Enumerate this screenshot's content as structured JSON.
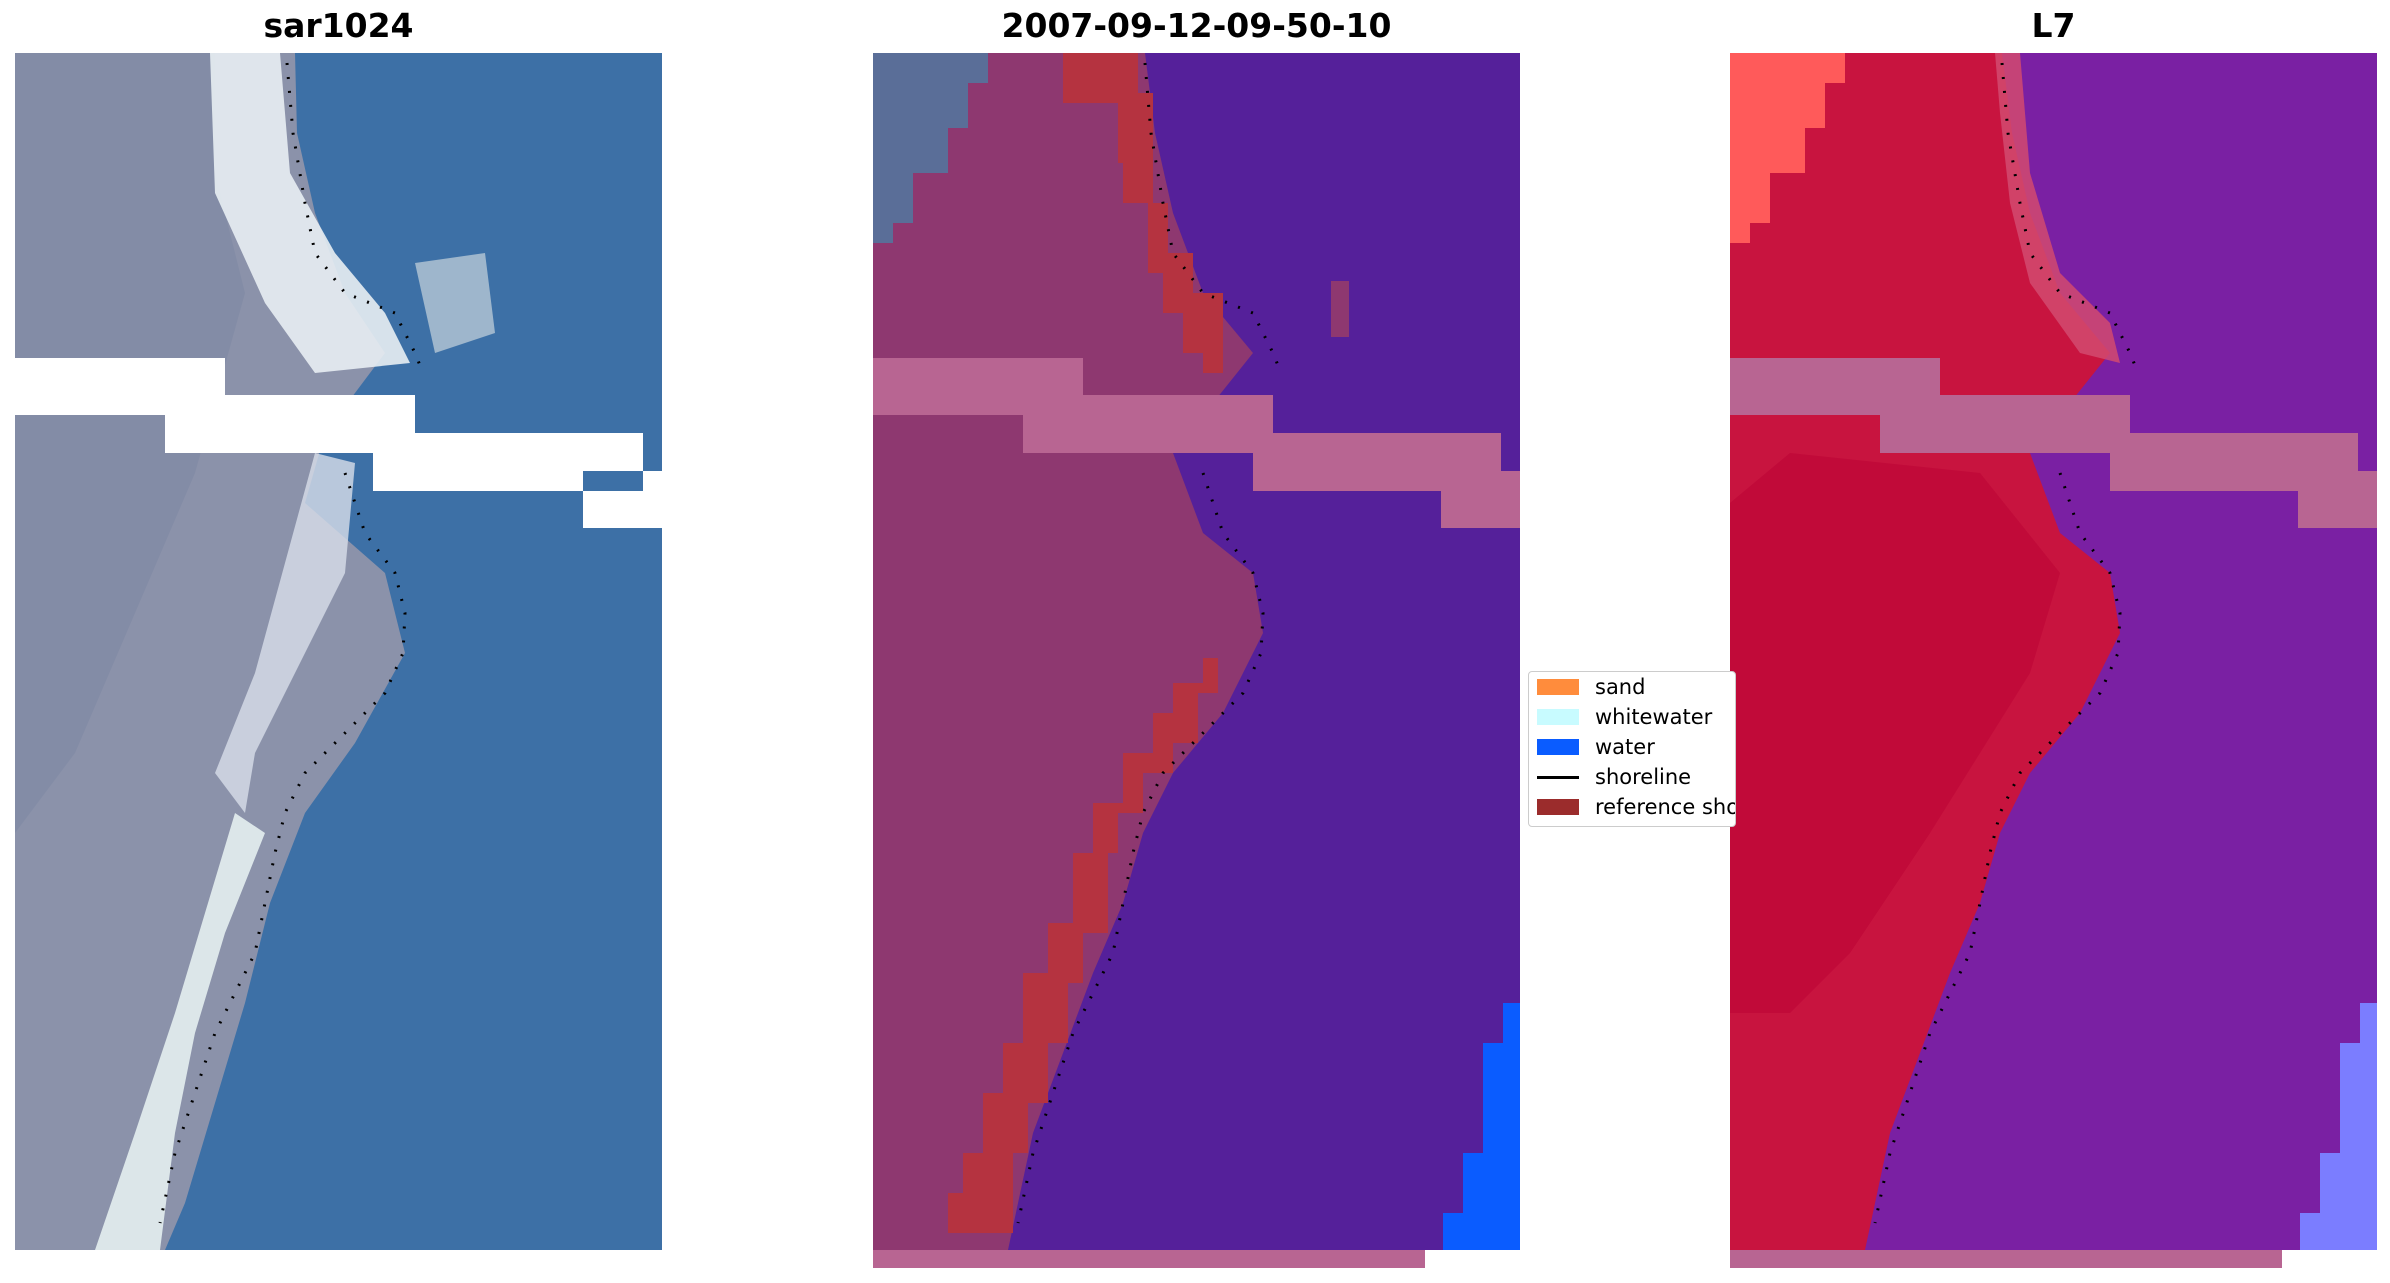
{
  "panels": [
    {
      "title": "sar1024"
    },
    {
      "title": "2007-09-12-09-50-10"
    },
    {
      "title": "L7"
    }
  ],
  "legend": {
    "items": [
      {
        "label": "sand",
        "color": "#ff8c3c"
      },
      {
        "label": "whitewater",
        "color": "#c8fbff"
      },
      {
        "label": "water",
        "color": "#0a5cff"
      },
      {
        "label": "shoreline",
        "color": "#000000"
      },
      {
        "label": "reference shoreline",
        "color": "#9b2c2c"
      }
    ]
  },
  "colors": {
    "rgb_water": "#3c6fa8",
    "rgb_land": "#8a8fa8",
    "rgb_whitewater": "#e6eef2",
    "class_land": "#8e3870",
    "class_water": "#55209a",
    "class_reference": "#b53340",
    "class_water_blue": "#0a5cff",
    "nodata_band": "#b86592",
    "mndwi_land": "#c8143f",
    "mndwi_water": "#7a1fa3",
    "mndwi_bright": "#ff5a5a",
    "mndwi_blue": "#7b7dff"
  }
}
